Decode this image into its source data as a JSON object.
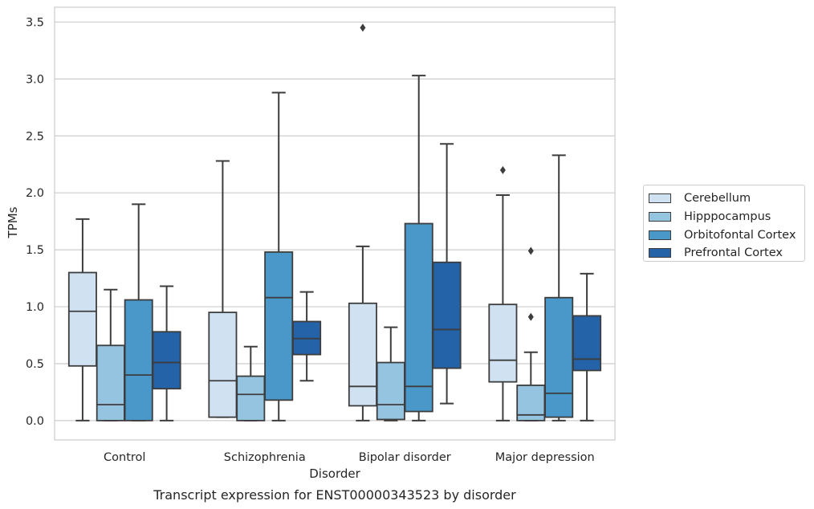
{
  "chart_data": {
    "type": "box",
    "xlabel": "Disorder",
    "ylabel": "TPMs",
    "caption": "Transcript expression for ENST00000343523 by disorder",
    "ylim": [
      -0.17,
      3.63
    ],
    "yticks": [
      "0.0",
      "0.5",
      "1.0",
      "1.5",
      "2.0",
      "2.5",
      "3.0",
      "3.5"
    ],
    "grid": true,
    "legend_position": "right",
    "categories": [
      "Control",
      "Schizophrenia",
      "Bipolar disorder",
      "Major depression"
    ],
    "series": [
      {
        "name": "Cerebellum",
        "color": "#d0e1f2",
        "boxes": [
          {
            "low": 0.0,
            "q1": 0.48,
            "median": 0.96,
            "q3": 1.3,
            "high": 1.77,
            "outliers": []
          },
          {
            "low": 0.03,
            "q1": 0.03,
            "median": 0.35,
            "q3": 0.95,
            "high": 2.28,
            "outliers": []
          },
          {
            "low": 0.0,
            "q1": 0.13,
            "median": 0.3,
            "q3": 1.03,
            "high": 1.53,
            "outliers": [
              3.45
            ]
          },
          {
            "low": 0.0,
            "q1": 0.34,
            "median": 0.53,
            "q3": 1.02,
            "high": 1.98,
            "outliers": [
              2.2
            ]
          }
        ]
      },
      {
        "name": "Hipppocampus",
        "color": "#94c4df",
        "boxes": [
          {
            "low": 0.0,
            "q1": 0.0,
            "median": 0.14,
            "q3": 0.66,
            "high": 1.15,
            "outliers": []
          },
          {
            "low": 0.0,
            "q1": 0.0,
            "median": 0.23,
            "q3": 0.39,
            "high": 0.65,
            "outliers": []
          },
          {
            "low": 0.0,
            "q1": 0.01,
            "median": 0.14,
            "q3": 0.51,
            "high": 0.82,
            "outliers": []
          },
          {
            "low": 0.0,
            "q1": 0.0,
            "median": 0.05,
            "q3": 0.31,
            "high": 0.6,
            "outliers": [
              0.91,
              1.49
            ]
          }
        ]
      },
      {
        "name": "Orbitofontal Cortex",
        "color": "#4a98c9",
        "boxes": [
          {
            "low": 0.0,
            "q1": 0.0,
            "median": 0.4,
            "q3": 1.06,
            "high": 1.9,
            "outliers": []
          },
          {
            "low": 0.0,
            "q1": 0.18,
            "median": 1.08,
            "q3": 1.48,
            "high": 2.88,
            "outliers": []
          },
          {
            "low": 0.0,
            "q1": 0.08,
            "median": 0.3,
            "q3": 1.73,
            "high": 3.03,
            "outliers": []
          },
          {
            "low": 0.0,
            "q1": 0.03,
            "median": 0.24,
            "q3": 1.08,
            "high": 2.33,
            "outliers": []
          }
        ]
      },
      {
        "name": "Prefrontal Cortex",
        "color": "#2463a8",
        "boxes": [
          {
            "low": 0.0,
            "q1": 0.28,
            "median": 0.51,
            "q3": 0.78,
            "high": 1.18,
            "outliers": []
          },
          {
            "low": 0.35,
            "q1": 0.58,
            "median": 0.72,
            "q3": 0.87,
            "high": 1.13,
            "outliers": []
          },
          {
            "low": 0.15,
            "q1": 0.46,
            "median": 0.8,
            "q3": 1.39,
            "high": 2.43,
            "outliers": []
          },
          {
            "low": 0.0,
            "q1": 0.44,
            "median": 0.54,
            "q3": 0.92,
            "high": 1.29,
            "outliers": []
          }
        ]
      }
    ]
  }
}
